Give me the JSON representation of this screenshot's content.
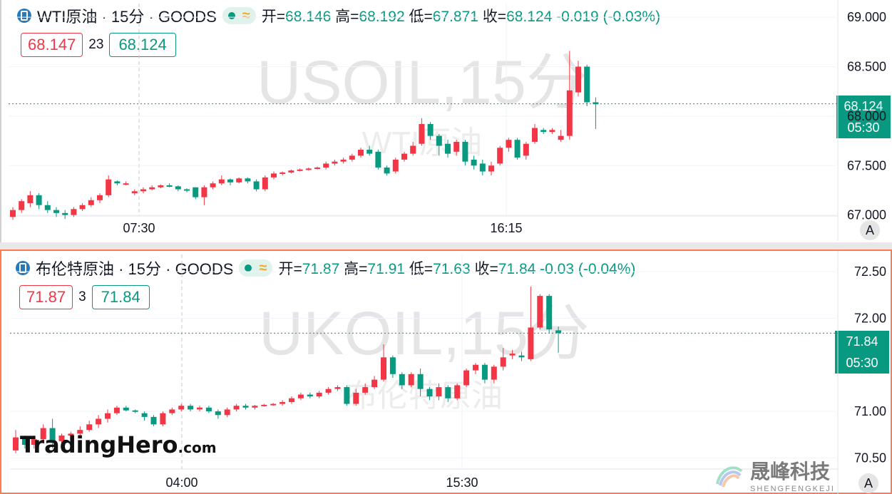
{
  "top": {
    "title": "WTI原油 · 15分 · GOODS",
    "open_label": "开=",
    "open": "68.146",
    "high_label": "高=",
    "high": "68.192",
    "low_label": "低=",
    "low": "67.871",
    "close_label": "收=",
    "close": "68.124",
    "change": "-0.019 (-0.03%)",
    "bid": "68.147",
    "spread": "23",
    "ask": "68.124",
    "watermark_main": "USOIL,15分",
    "watermark_sub": "WTI原油",
    "price_axis": [
      "69.000",
      "68.500",
      "68.000",
      "67.500",
      "67.000"
    ],
    "time_axis": [
      "07:30",
      "16:15"
    ],
    "last_price": "68.124",
    "countdown": "05:30",
    "axis_mode": "A"
  },
  "bottom": {
    "title": "布伦特原油 · 15分 · GOODS",
    "open_label": "开=",
    "open": "71.87",
    "high_label": "高=",
    "high": "71.91",
    "low_label": "低=",
    "low": "71.63",
    "close_label": "收=",
    "close": "71.84",
    "change": "-0.03 (-0.04%)",
    "bid": "71.87",
    "spread": "3",
    "ask": "71.84",
    "watermark_main": "UKOIL,15分",
    "watermark_sub": "布伦特原油",
    "price_axis": [
      "72.50",
      "72.00",
      "71.00",
      "70.50"
    ],
    "time_axis": [
      "04:00",
      "15:30"
    ],
    "last_price": "71.84",
    "countdown": "05:30",
    "axis_mode": "A"
  },
  "branding": {
    "tradinghero": "TradingHero",
    "tradinghero_suffix": ".com",
    "shengfeng_cn": "晟峰科技",
    "shengfeng_en": "SHENGFENGKEJI"
  },
  "colors": {
    "up": "#f23645",
    "down": "#089981",
    "grid": "#f0f3fa",
    "accent_border": "#ff7a4f"
  },
  "chart_data": [
    {
      "type": "candlestick",
      "title": "USOIL,15分",
      "ylim": [
        66.99,
        69.03
      ],
      "x_ticks": [
        "07:30",
        "16:15"
      ],
      "last": 68.124,
      "candles": [
        [
          66.98,
          67.05,
          66.95,
          67.08
        ],
        [
          67.05,
          67.14,
          67.02,
          67.16
        ],
        [
          67.12,
          67.2,
          67.08,
          67.24
        ],
        [
          67.2,
          67.1,
          67.06,
          67.22
        ],
        [
          67.1,
          67.05,
          67.02,
          67.14
        ],
        [
          67.05,
          67.02,
          66.98,
          67.08
        ],
        [
          67.02,
          67.0,
          66.96,
          67.05
        ],
        [
          67.0,
          67.06,
          66.98,
          67.08
        ],
        [
          67.06,
          67.1,
          67.04,
          67.12
        ],
        [
          67.1,
          67.15,
          67.08,
          67.18
        ],
        [
          67.15,
          67.2,
          67.12,
          67.22
        ],
        [
          67.2,
          67.36,
          67.18,
          67.4
        ],
        [
          67.34,
          67.32,
          67.3,
          67.35
        ],
        [
          67.32,
          67.32,
          67.3,
          67.34
        ],
        [
          67.22,
          67.24,
          67.2,
          67.26
        ],
        [
          67.24,
          67.26,
          67.22,
          67.28
        ],
        [
          67.26,
          67.28,
          67.25,
          67.3
        ],
        [
          67.28,
          67.3,
          67.27,
          67.31
        ],
        [
          67.3,
          67.29,
          67.28,
          67.32
        ],
        [
          67.29,
          67.26,
          67.24,
          67.3
        ],
        [
          67.26,
          67.25,
          67.23,
          67.27
        ],
        [
          67.28,
          67.18,
          67.16,
          67.28
        ],
        [
          67.18,
          67.28,
          67.1,
          67.3
        ],
        [
          67.28,
          67.32,
          67.26,
          67.34
        ],
        [
          67.32,
          67.36,
          67.3,
          67.4
        ],
        [
          67.36,
          67.33,
          67.3,
          67.37
        ],
        [
          67.33,
          67.37,
          67.32,
          67.38
        ],
        [
          67.37,
          67.34,
          67.32,
          67.38
        ],
        [
          67.34,
          67.26,
          67.24,
          67.36
        ],
        [
          67.26,
          67.38,
          67.24,
          67.4
        ],
        [
          67.38,
          67.42,
          67.36,
          67.44
        ],
        [
          67.42,
          67.43,
          67.4,
          67.44
        ],
        [
          67.43,
          67.45,
          67.42,
          67.46
        ],
        [
          67.45,
          67.46,
          67.44,
          67.47
        ],
        [
          67.46,
          67.47,
          67.45,
          67.48
        ],
        [
          67.47,
          67.48,
          67.46,
          67.49
        ],
        [
          67.48,
          67.52,
          67.46,
          67.54
        ],
        [
          67.52,
          67.54,
          67.5,
          67.56
        ],
        [
          67.54,
          67.56,
          67.52,
          67.58
        ],
        [
          67.56,
          67.6,
          67.54,
          67.62
        ],
        [
          67.6,
          67.66,
          67.58,
          67.68
        ],
        [
          67.66,
          67.62,
          67.6,
          67.7
        ],
        [
          67.64,
          67.48,
          67.46,
          67.66
        ],
        [
          67.48,
          67.42,
          67.4,
          67.5
        ],
        [
          67.44,
          67.56,
          67.42,
          67.58
        ],
        [
          67.56,
          67.62,
          67.54,
          67.64
        ],
        [
          67.62,
          67.7,
          67.6,
          67.74
        ],
        [
          67.72,
          67.92,
          67.7,
          67.98
        ],
        [
          67.92,
          67.8,
          67.76,
          67.94
        ],
        [
          67.8,
          67.7,
          67.6,
          67.82
        ],
        [
          67.72,
          67.62,
          67.58,
          67.76
        ],
        [
          67.64,
          67.74,
          67.6,
          67.76
        ],
        [
          67.74,
          67.54,
          67.5,
          67.76
        ],
        [
          67.56,
          67.5,
          67.46,
          67.6
        ],
        [
          67.52,
          67.44,
          67.4,
          67.56
        ],
        [
          67.44,
          67.5,
          67.4,
          67.54
        ],
        [
          67.52,
          67.68,
          67.5,
          67.7
        ],
        [
          67.68,
          67.76,
          67.64,
          67.78
        ],
        [
          67.76,
          67.58,
          67.56,
          67.78
        ],
        [
          67.6,
          67.72,
          67.56,
          67.74
        ],
        [
          67.74,
          67.88,
          67.72,
          67.92
        ],
        [
          67.86,
          67.84,
          67.82,
          67.88
        ],
        [
          67.84,
          67.86,
          67.82,
          67.88
        ],
        [
          67.76,
          67.8,
          67.74,
          67.86
        ],
        [
          67.8,
          68.26,
          67.76,
          68.66
        ],
        [
          68.24,
          68.5,
          68.2,
          68.56
        ],
        [
          68.5,
          68.14,
          68.1,
          68.52
        ],
        [
          68.14,
          68.12,
          67.87,
          68.19
        ]
      ]
    },
    {
      "type": "candlestick",
      "title": "UKOIL,15分",
      "ylim": [
        70.38,
        72.57
      ],
      "x_ticks": [
        "04:00",
        "15:30"
      ],
      "last": 71.84,
      "candles": [
        [
          70.58,
          70.72,
          70.55,
          70.8
        ],
        [
          70.72,
          70.64,
          70.6,
          70.74
        ],
        [
          70.64,
          70.7,
          70.6,
          70.74
        ],
        [
          70.7,
          70.82,
          70.66,
          70.86
        ],
        [
          70.82,
          70.66,
          70.6,
          70.92
        ],
        [
          70.68,
          70.74,
          70.62,
          70.76
        ],
        [
          70.74,
          70.76,
          70.7,
          70.78
        ],
        [
          70.76,
          70.8,
          70.74,
          70.84
        ],
        [
          70.8,
          70.86,
          70.78,
          70.9
        ],
        [
          70.86,
          70.92,
          70.82,
          70.96
        ],
        [
          70.92,
          70.98,
          70.88,
          71.02
        ],
        [
          70.98,
          71.04,
          70.96,
          71.06
        ],
        [
          71.04,
          71.01,
          71.0,
          71.06
        ],
        [
          71.01,
          71.0,
          70.98,
          71.02
        ],
        [
          70.98,
          70.94,
          70.9,
          71.0
        ],
        [
          70.94,
          70.86,
          70.84,
          70.96
        ],
        [
          70.86,
          70.98,
          70.84,
          71.0
        ],
        [
          70.98,
          71.02,
          70.96,
          71.04
        ],
        [
          71.02,
          71.06,
          71.0,
          71.08
        ],
        [
          71.06,
          71.02,
          71.0,
          71.08
        ],
        [
          71.02,
          71.04,
          71.0,
          71.06
        ],
        [
          71.04,
          71.0,
          70.98,
          71.06
        ],
        [
          71.0,
          70.96,
          70.92,
          71.02
        ],
        [
          70.96,
          71.02,
          70.94,
          71.04
        ],
        [
          71.02,
          71.06,
          71.0,
          71.08
        ],
        [
          71.06,
          71.04,
          71.02,
          71.08
        ],
        [
          71.04,
          71.06,
          71.02,
          71.07
        ],
        [
          71.06,
          71.07,
          71.05,
          71.08
        ],
        [
          71.07,
          71.08,
          71.06,
          71.09
        ],
        [
          71.08,
          71.1,
          71.06,
          71.12
        ],
        [
          71.1,
          71.14,
          71.08,
          71.16
        ],
        [
          71.14,
          71.18,
          71.12,
          71.2
        ],
        [
          71.18,
          71.16,
          71.14,
          71.2
        ],
        [
          71.16,
          71.2,
          71.14,
          71.22
        ],
        [
          71.2,
          71.24,
          71.18,
          71.26
        ],
        [
          71.24,
          71.26,
          71.22,
          71.28
        ],
        [
          71.26,
          71.08,
          71.06,
          71.28
        ],
        [
          71.08,
          71.2,
          71.06,
          71.24
        ],
        [
          71.2,
          71.26,
          71.18,
          71.3
        ],
        [
          71.26,
          71.34,
          71.24,
          71.38
        ],
        [
          71.34,
          71.58,
          71.32,
          71.72
        ],
        [
          71.58,
          71.4,
          71.36,
          71.6
        ],
        [
          71.4,
          71.28,
          71.24,
          71.42
        ],
        [
          71.28,
          71.4,
          71.26,
          71.42
        ],
        [
          71.4,
          71.24,
          71.16,
          71.46
        ],
        [
          71.24,
          71.16,
          71.12,
          71.26
        ],
        [
          71.16,
          71.26,
          71.12,
          71.3
        ],
        [
          71.26,
          71.14,
          71.1,
          71.28
        ],
        [
          71.14,
          71.28,
          71.12,
          71.3
        ],
        [
          71.28,
          71.44,
          71.26,
          71.46
        ],
        [
          71.44,
          71.5,
          71.4,
          71.52
        ],
        [
          71.5,
          71.34,
          71.3,
          71.52
        ],
        [
          71.34,
          71.48,
          71.3,
          71.5
        ],
        [
          71.48,
          71.58,
          71.44,
          71.68
        ],
        [
          71.6,
          71.62,
          71.56,
          71.66
        ],
        [
          71.6,
          71.58,
          71.54,
          71.64
        ],
        [
          71.56,
          71.9,
          71.54,
          72.34
        ],
        [
          71.9,
          72.24,
          71.88,
          72.26
        ],
        [
          72.24,
          71.88,
          71.84,
          72.26
        ],
        [
          71.87,
          71.84,
          71.63,
          71.91
        ]
      ]
    }
  ]
}
